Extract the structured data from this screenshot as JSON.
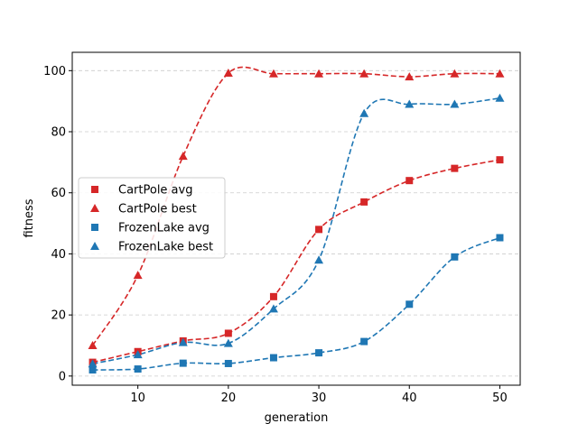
{
  "chart_data": {
    "type": "line",
    "title": "",
    "xlabel": "generation",
    "ylabel": "fitness",
    "xlim": [
      2.75,
      52.25
    ],
    "ylim": [
      -3,
      106
    ],
    "x_ticks": [
      10,
      20,
      30,
      40,
      50
    ],
    "y_ticks": [
      0,
      20,
      40,
      60,
      80,
      100
    ],
    "grid": "horizontal-dashed",
    "legend_position": "center-left",
    "x": [
      5,
      10,
      15,
      20,
      25,
      30,
      35,
      40,
      45,
      50
    ],
    "series": [
      {
        "name": "CartPole avg",
        "color": "#d62728",
        "marker": "square",
        "values": [
          4.5,
          8,
          11.5,
          14,
          26,
          48,
          57,
          64,
          68,
          70.8
        ]
      },
      {
        "name": "CartPole best",
        "color": "#d62728",
        "marker": "triangle",
        "values": [
          10,
          33,
          72,
          99.2,
          99,
          99,
          99,
          98,
          99,
          99
        ]
      },
      {
        "name": "FrozenLake avg",
        "color": "#1f77b4",
        "marker": "square",
        "values": [
          2,
          2.3,
          4.2,
          4.1,
          6,
          7.6,
          11.3,
          23.5,
          39,
          45.3
        ]
      },
      {
        "name": "FrozenLake best",
        "color": "#1f77b4",
        "marker": "triangle",
        "values": [
          4,
          7,
          11,
          10.7,
          22,
          38,
          86,
          89,
          89,
          91
        ]
      }
    ]
  }
}
